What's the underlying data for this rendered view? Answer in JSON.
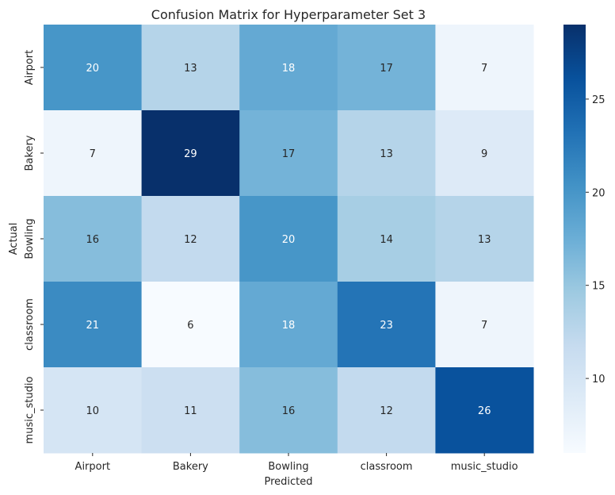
{
  "chart_data": {
    "type": "heatmap",
    "title": "Confusion Matrix for Hyperparameter Set 3",
    "xlabel": "Predicted",
    "ylabel": "Actual",
    "x_categories": [
      "Airport",
      "Bakery",
      "Bowling",
      "classroom",
      "music_studio"
    ],
    "y_categories": [
      "Airport",
      "Bakery",
      "Bowling",
      "classroom",
      "music_studio"
    ],
    "values": [
      [
        20,
        13,
        18,
        17,
        7
      ],
      [
        7,
        29,
        17,
        13,
        9
      ],
      [
        16,
        12,
        20,
        14,
        13
      ],
      [
        21,
        6,
        18,
        23,
        7
      ],
      [
        10,
        11,
        16,
        12,
        26
      ]
    ],
    "colormap": "Blues",
    "vmin": 6,
    "vmax": 29,
    "colorbar_ticks": [
      10,
      15,
      20,
      25
    ]
  }
}
